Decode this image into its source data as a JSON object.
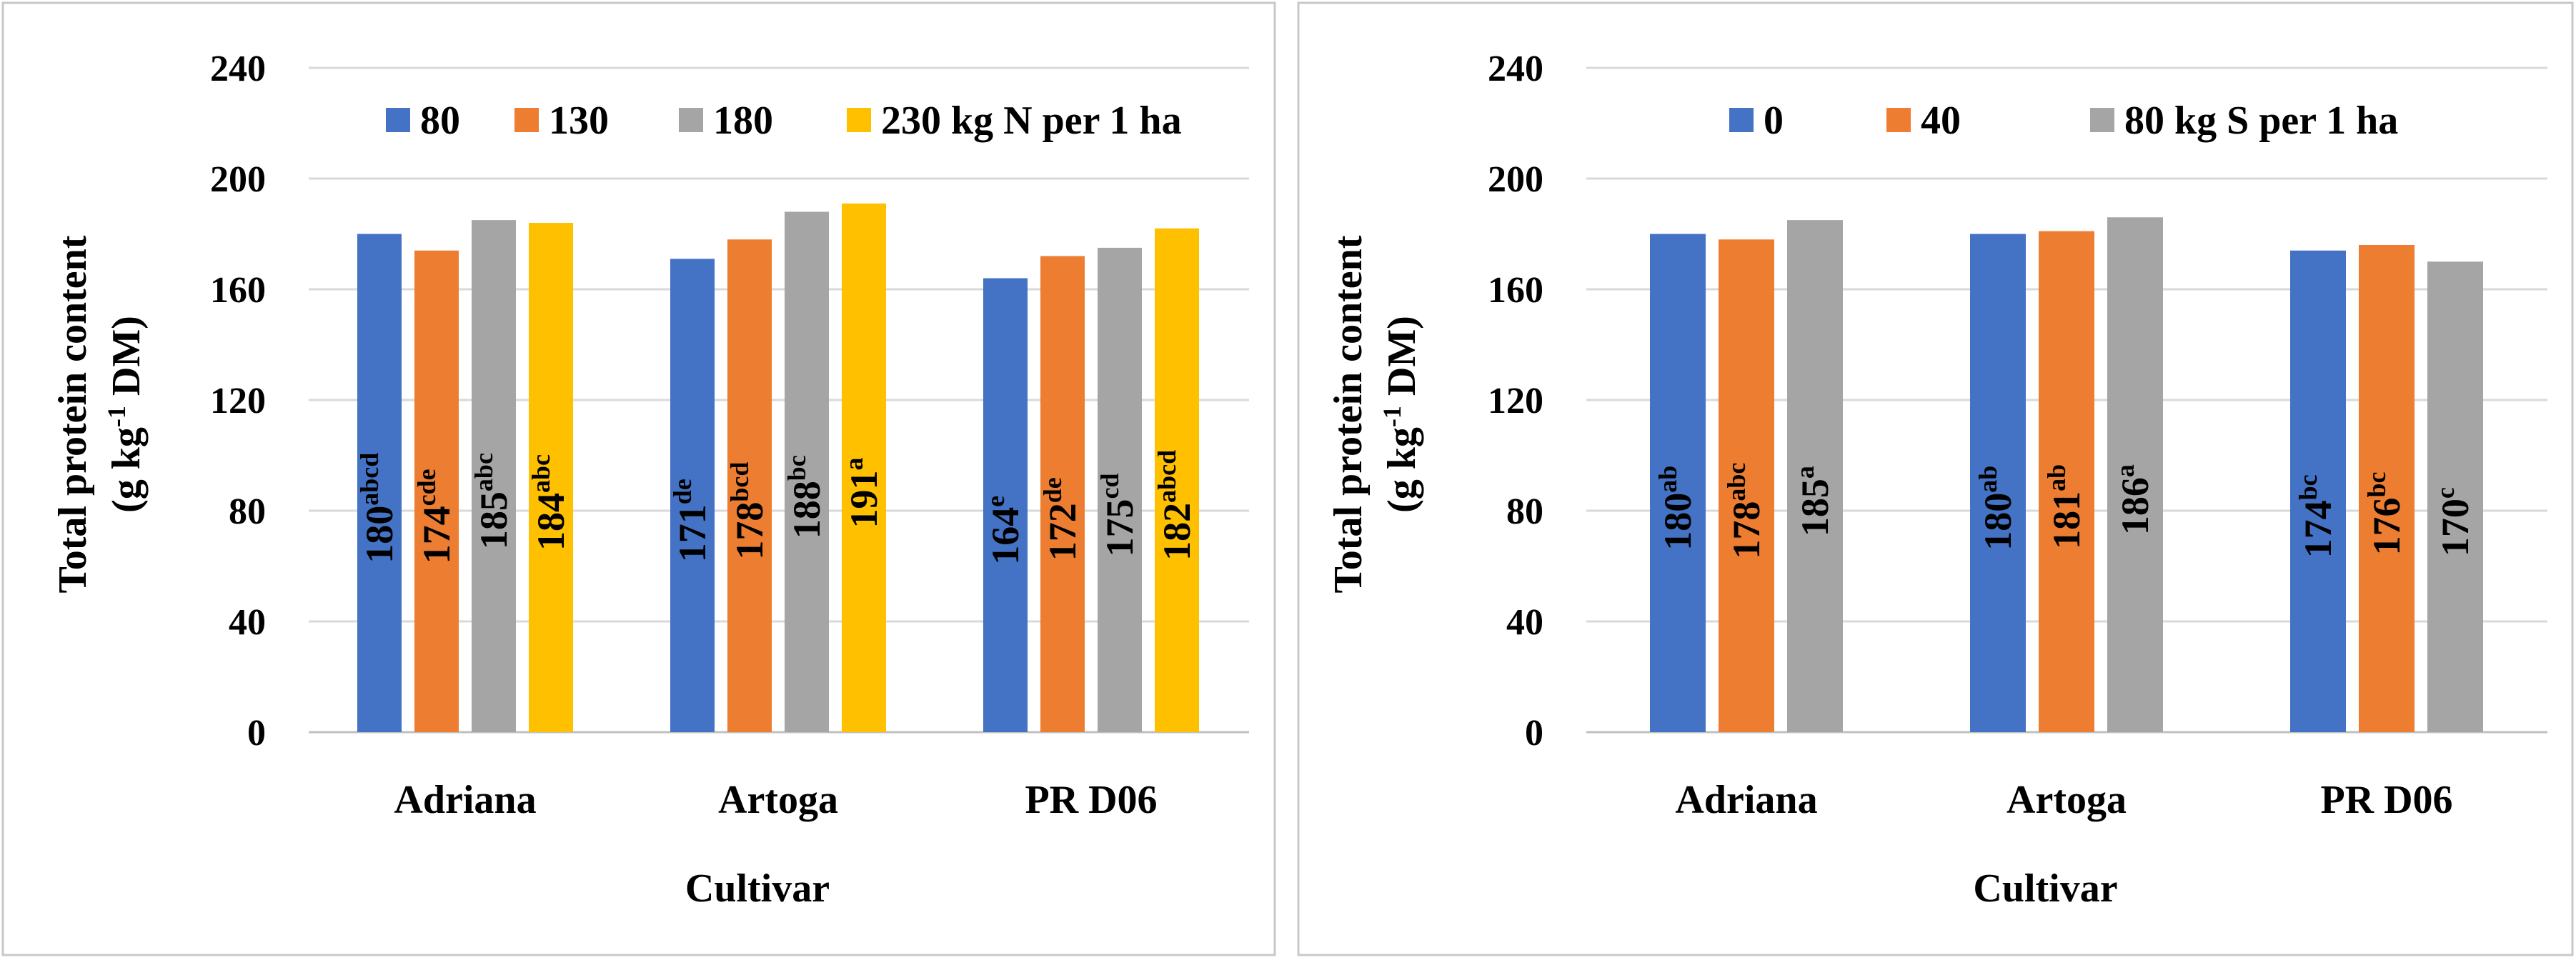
{
  "chart_data": [
    {
      "type": "bar",
      "categories": [
        "Adriana",
        "Artoga",
        "PR D06"
      ],
      "series": [
        {
          "name": "80",
          "values": [
            180,
            171,
            164
          ],
          "letters": [
            "abcd",
            "de",
            "e"
          ],
          "color": "#4472C4"
        },
        {
          "name": "130",
          "values": [
            174,
            178,
            172
          ],
          "letters": [
            "cde",
            "bcd",
            "de"
          ],
          "color": "#ED7D31"
        },
        {
          "name": "180",
          "values": [
            185,
            188,
            175
          ],
          "letters": [
            "abc",
            "bc",
            "cd"
          ],
          "color": "#A5A5A5"
        },
        {
          "name": "230 kg N per 1 ha",
          "values": [
            184,
            191,
            182
          ],
          "letters": [
            "abc",
            "a",
            "abcd"
          ],
          "color": "#FFC000"
        }
      ],
      "xlabel": "Cultivar",
      "ylabel_line1": "Total protein content",
      "ylabel_line2_pre": "(g kg",
      "ylabel_line2_sup": "-1",
      "ylabel_line2_post": " DM)",
      "ylim": [
        0,
        240
      ],
      "yticks": [
        0,
        40,
        80,
        120,
        160,
        200,
        240
      ],
      "grid": true,
      "legend": "top"
    },
    {
      "type": "bar",
      "categories": [
        "Adriana",
        "Artoga",
        "PR D06"
      ],
      "series": [
        {
          "name": "0",
          "values": [
            180,
            180,
            174
          ],
          "letters": [
            "ab",
            "ab",
            "bc"
          ],
          "color": "#4472C4"
        },
        {
          "name": "40",
          "values": [
            178,
            181,
            176
          ],
          "letters": [
            "abc",
            "ab",
            "bc"
          ],
          "color": "#ED7D31"
        },
        {
          "name": "80 kg S per 1 ha",
          "values": [
            185,
            186,
            170
          ],
          "letters": [
            "a",
            "a",
            "c"
          ],
          "color": "#A5A5A5"
        }
      ],
      "xlabel": "Cultivar",
      "ylabel_line1": "Total protein content",
      "ylabel_line2_pre": "(g kg",
      "ylabel_line2_sup": "-1",
      "ylabel_line2_post": " DM)",
      "ylim": [
        0,
        240
      ],
      "yticks": [
        0,
        40,
        80,
        120,
        160,
        200,
        240
      ],
      "grid": true,
      "legend": "top"
    }
  ]
}
